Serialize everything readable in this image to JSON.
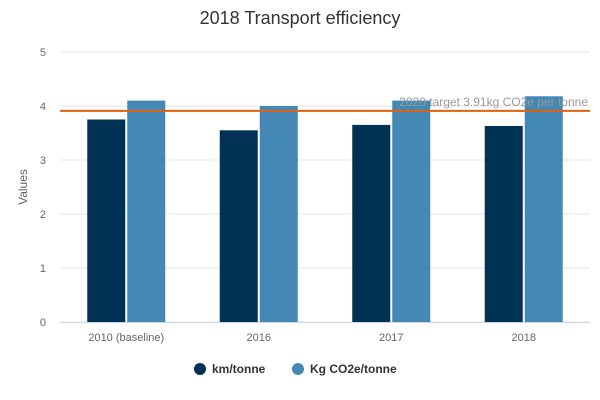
{
  "chart_data": {
    "type": "bar",
    "title": "2018 Transport efficiency",
    "xlabel": "",
    "ylabel": "Values",
    "categories": [
      "2010 (baseline)",
      "2016",
      "2017",
      "2018"
    ],
    "series": [
      {
        "name": "km/tonne",
        "color": "#003256",
        "values": [
          3.75,
          3.55,
          3.65,
          3.63
        ]
      },
      {
        "name": "Kg CO2e/tonne",
        "color": "#4488b5",
        "values": [
          4.1,
          4.0,
          4.1,
          4.18
        ]
      }
    ],
    "ylim": [
      0,
      5
    ],
    "yticks": [
      0,
      1,
      2,
      3,
      4,
      5
    ],
    "grid": true,
    "legend": "bottom",
    "reference_line": {
      "value": 3.91,
      "label": "2020 target 3.91kg CO2e per tonne",
      "color": "#e0610e"
    }
  }
}
